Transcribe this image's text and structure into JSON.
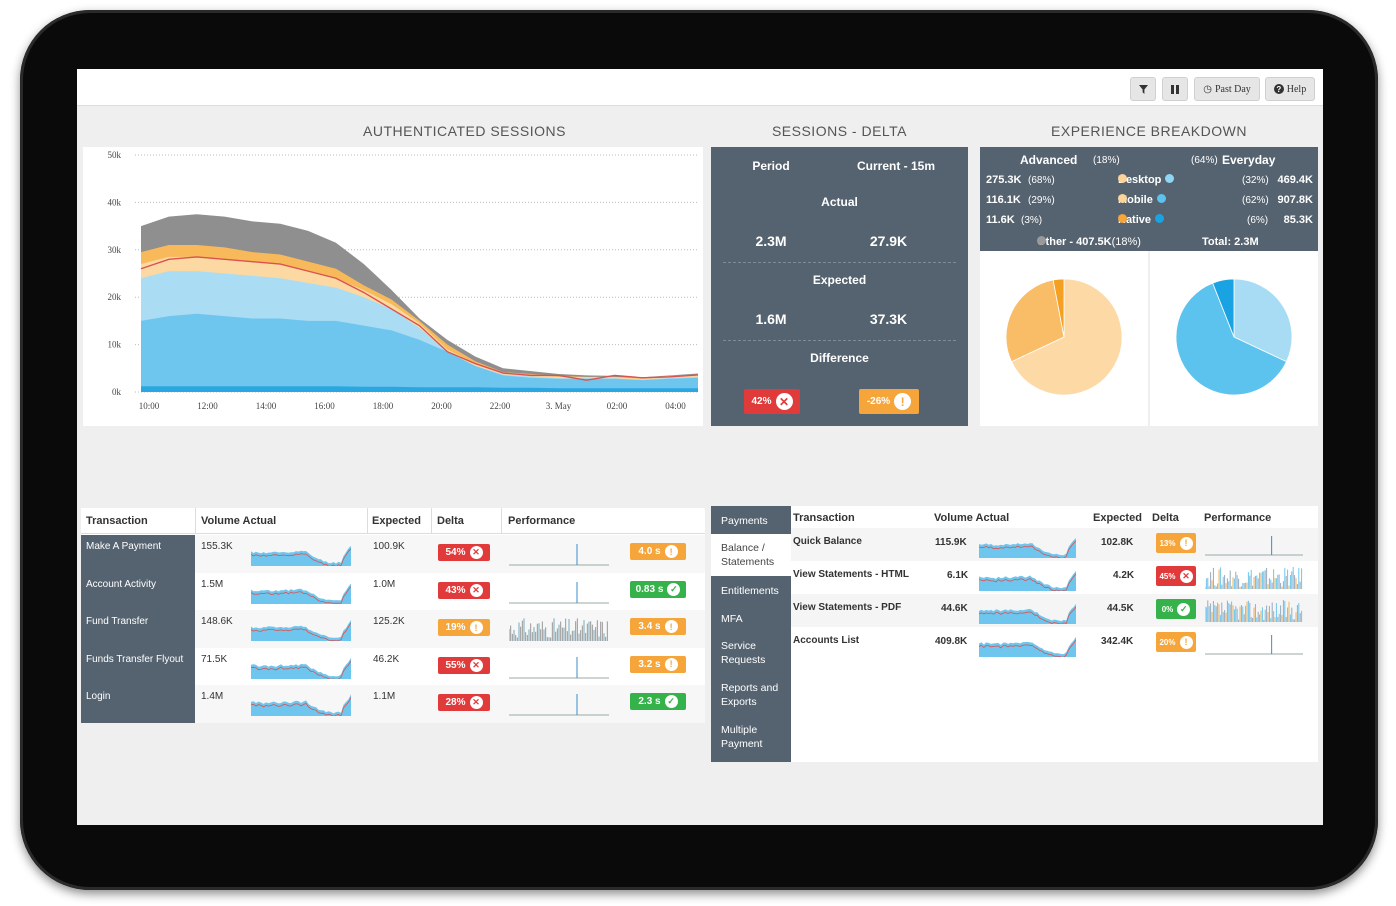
{
  "toolbar": {
    "filter_icon": "filter-icon",
    "pause_icon": "pause-icon",
    "past_day": "Past Day",
    "help": "Help"
  },
  "sections": {
    "auth": "AUTHENTICATED SESSIONS",
    "delta": "SESSIONS - DELTA",
    "exp": "EXPERIENCE BREAKDOWN"
  },
  "chart_data": {
    "type": "area",
    "title": "AUTHENTICATED SESSIONS",
    "y_ticks": [
      "50k",
      "40k",
      "30k",
      "20k",
      "10k",
      "0k"
    ],
    "x_ticks": [
      "10:00",
      "12:00",
      "14:00",
      "16:00",
      "18:00",
      "20:00",
      "22:00",
      "3. May",
      "02:00",
      "04:00"
    ],
    "ylim": [
      0,
      50000
    ],
    "x": [
      0,
      1,
      2,
      3,
      4,
      5,
      6,
      7,
      8,
      9,
      10,
      11,
      12,
      13,
      14,
      15,
      16,
      17,
      18,
      19,
      20
    ],
    "series": [
      {
        "name": "base",
        "color": "#2aa7e0",
        "values": [
          1200,
          1200,
          1200,
          1200,
          1200,
          1200,
          1200,
          1200,
          1100,
          1100,
          1000,
          1000,
          1000,
          900,
          900,
          800,
          800,
          800,
          800,
          800,
          800
        ]
      },
      {
        "name": "mid-blue",
        "color": "#6ec6ef",
        "values": [
          15000,
          16000,
          16500,
          16000,
          15500,
          15500,
          15000,
          15000,
          14000,
          13000,
          11000,
          8500,
          5500,
          3500,
          3000,
          2800,
          2800,
          2800,
          2500,
          2800,
          3000
        ]
      },
      {
        "name": "light-blue",
        "color": "#aadcf3",
        "values": [
          24000,
          25500,
          25500,
          25000,
          24500,
          24000,
          23000,
          22000,
          20000,
          17500,
          13500,
          8500,
          5500,
          3700,
          3300,
          2900,
          2900,
          2900,
          2600,
          3000,
          3200
        ]
      },
      {
        "name": "light-orange",
        "color": "#fcd8a3",
        "values": [
          27000,
          28500,
          28500,
          28000,
          27500,
          27000,
          25500,
          24000,
          21500,
          18500,
          14500,
          9000,
          6000,
          4000,
          3600,
          3200,
          3100,
          3100,
          2800,
          3200,
          3500
        ]
      },
      {
        "name": "orange",
        "color": "#f8b95a",
        "values": [
          29500,
          31000,
          31000,
          30500,
          29500,
          29000,
          27500,
          26000,
          22500,
          19500,
          15000,
          10000,
          6500,
          4200,
          3800,
          3400,
          3200,
          3200,
          3000,
          3400,
          3700
        ]
      },
      {
        "name": "gray",
        "color": "#8f8f8f",
        "values": [
          35000,
          37000,
          37500,
          37000,
          36000,
          35500,
          34000,
          31500,
          27000,
          21500,
          15500,
          11000,
          7500,
          5000,
          4400,
          3800,
          3500,
          3400,
          3100,
          3500,
          3900
        ]
      },
      {
        "name": "red-line",
        "color": "#d9534f",
        "line": true,
        "values": [
          26000,
          28000,
          28500,
          28000,
          27500,
          27000,
          25500,
          24000,
          21000,
          17500,
          14000,
          8500,
          6000,
          4000,
          3500,
          3500,
          2500,
          3500,
          3000,
          3200,
          3600
        ]
      }
    ]
  },
  "delta": {
    "period_label": "Period",
    "current_label": "Current - 15m",
    "actual_label": "Actual",
    "actual_period": "2.3M",
    "actual_current": "27.9K",
    "expected_label": "Expected",
    "expected_period": "1.6M",
    "expected_current": "37.3K",
    "difference_label": "Difference",
    "diff_period": "42%",
    "diff_current": "-26%",
    "diff_period_icon": "x-circle-icon",
    "diff_current_icon": "exclamation-icon"
  },
  "experience": {
    "advanced": "Advanced",
    "advanced_pct": "(18%)",
    "everyday_pct": "(64%)",
    "everyday": "Everyday",
    "rows": [
      {
        "left": "275.3K",
        "left_pct": "(68%)",
        "name": "Desktop",
        "right_pct": "(32%)",
        "right": "469.4K",
        "lc": "#fcd49a",
        "rc": "#8fd6f5"
      },
      {
        "left": "116.1K",
        "left_pct": "(29%)",
        "name": "Mobile",
        "right_pct": "(62%)",
        "right": "907.8K",
        "lc": "#fcd49a",
        "rc": "#5cc3ef"
      },
      {
        "left": "11.6K",
        "left_pct": "(3%)",
        "name": "Native",
        "right_pct": "(6%)",
        "right": "85.3K",
        "lc": "#f5a53a",
        "rc": "#1aa3e3"
      }
    ],
    "other": "Other - 407.5K",
    "other_pct": "(18%)",
    "total": "Total: 2.3M",
    "pie_left": [
      {
        "name": "Desktop",
        "value": 68,
        "color": "#fdd9a6"
      },
      {
        "name": "Mobile",
        "value": 29,
        "color": "#f9bc67"
      },
      {
        "name": "Native",
        "value": 3,
        "color": "#f5a020"
      }
    ],
    "pie_right": [
      {
        "name": "Desktop",
        "value": 32,
        "color": "#a8dcf5"
      },
      {
        "name": "Mobile",
        "value": 62,
        "color": "#5cc3ef"
      },
      {
        "name": "Native",
        "value": 6,
        "color": "#1aa3e3"
      }
    ]
  },
  "left_table": {
    "headers": [
      "Transaction",
      "Volume Actual",
      "Expected",
      "Delta",
      "Performance"
    ],
    "rows": [
      {
        "name": "Make A Payment",
        "volume": "155.3K",
        "expected": "100.9K",
        "delta": "54%",
        "delta_type": "red",
        "perf": "4.0 s",
        "perf_type": "orange"
      },
      {
        "name": "Account Activity",
        "volume": "1.5M",
        "expected": "1.0M",
        "delta": "43%",
        "delta_type": "red",
        "perf": "0.83 s",
        "perf_type": "green"
      },
      {
        "name": "Fund Transfer",
        "volume": "148.6K",
        "expected": "125.2K",
        "delta": "19%",
        "delta_type": "orange",
        "perf": "3.4 s",
        "perf_type": "orange"
      },
      {
        "name": "Funds Transfer Flyout",
        "volume": "71.5K",
        "expected": "46.2K",
        "delta": "55%",
        "delta_type": "red",
        "perf": "3.2 s",
        "perf_type": "orange"
      },
      {
        "name": "Login",
        "volume": "1.4M",
        "expected": "1.1M",
        "delta": "28%",
        "delta_type": "red",
        "perf": "2.3 s",
        "perf_type": "green"
      }
    ]
  },
  "nav": {
    "items": [
      "Payments",
      "Balance / Statements",
      "Entitlements",
      "MFA",
      "Service Requests",
      "Reports and Exports",
      "Multiple Payment"
    ]
  },
  "right_table": {
    "headers": [
      "Transaction",
      "Volume Actual",
      "Expected",
      "Delta",
      "Performance"
    ],
    "rows": [
      {
        "name": "Quick Balance",
        "volume": "115.9K",
        "expected": "102.8K",
        "delta": "13%",
        "delta_type": "orange"
      },
      {
        "name": "View Statements - HTML",
        "volume": "6.1K",
        "expected": "4.2K",
        "delta": "45%",
        "delta_type": "red"
      },
      {
        "name": "View Statements - PDF",
        "volume": "44.6K",
        "expected": "44.5K",
        "delta": "0%",
        "delta_type": "green"
      },
      {
        "name": "Accounts List",
        "volume": "409.8K",
        "expected": "342.4K",
        "delta": "20%",
        "delta_type": "orange"
      }
    ]
  }
}
